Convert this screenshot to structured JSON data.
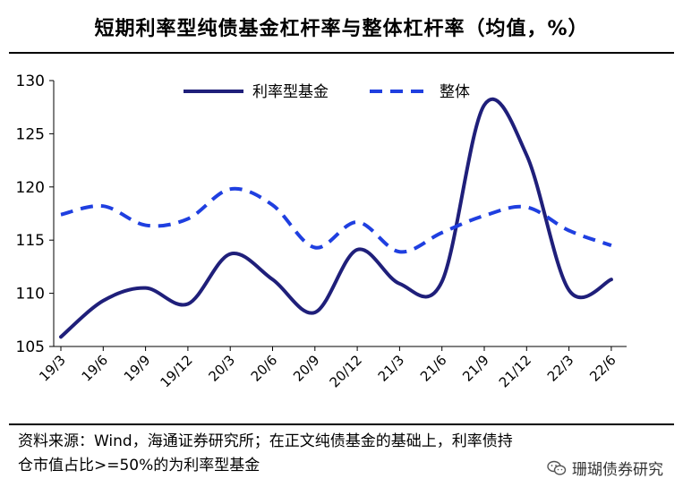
{
  "header": {
    "title": "短期利率型纯债基金杠杆率与整体杠杆率（均值，%）"
  },
  "chart_data": {
    "type": "line",
    "title": "短期利率型纯债基金杠杆率与整体杠杆率（均值，%）",
    "categories": [
      "19/3",
      "19/6",
      "19/9",
      "19/12",
      "20/3",
      "20/6",
      "20/9",
      "20/12",
      "21/3",
      "21/6",
      "21/9",
      "21/12",
      "22/3",
      "22/6"
    ],
    "yticks": [
      105,
      110,
      115,
      120,
      125,
      130
    ],
    "ylim": [
      105,
      130
    ],
    "legend_position": "top",
    "grid": false,
    "series": [
      {
        "name": "利率型基金",
        "color": "#1f1f7a",
        "style": "solid",
        "values": [
          105.9,
          109.3,
          110.5,
          109.0,
          113.7,
          111.3,
          108.2,
          114.1,
          110.9,
          111.1,
          127.7,
          123.0,
          110.3,
          111.3
        ]
      },
      {
        "name": "整体",
        "color": "#1f3fe0",
        "style": "dashed",
        "values": [
          117.4,
          118.2,
          116.4,
          117.0,
          119.8,
          118.3,
          114.3,
          116.7,
          113.9,
          115.7,
          117.3,
          118.1,
          115.9,
          114.5
        ]
      }
    ]
  },
  "footer": {
    "source_line1": "资料来源：Wind，海通证券研究所；在正文纯债基金的基础上，利率债持",
    "source_line2": "仓市值占比>=50%的为利率型基金",
    "watermark": "珊瑚债券研究",
    "watermark_icon": "wechat-icon"
  }
}
